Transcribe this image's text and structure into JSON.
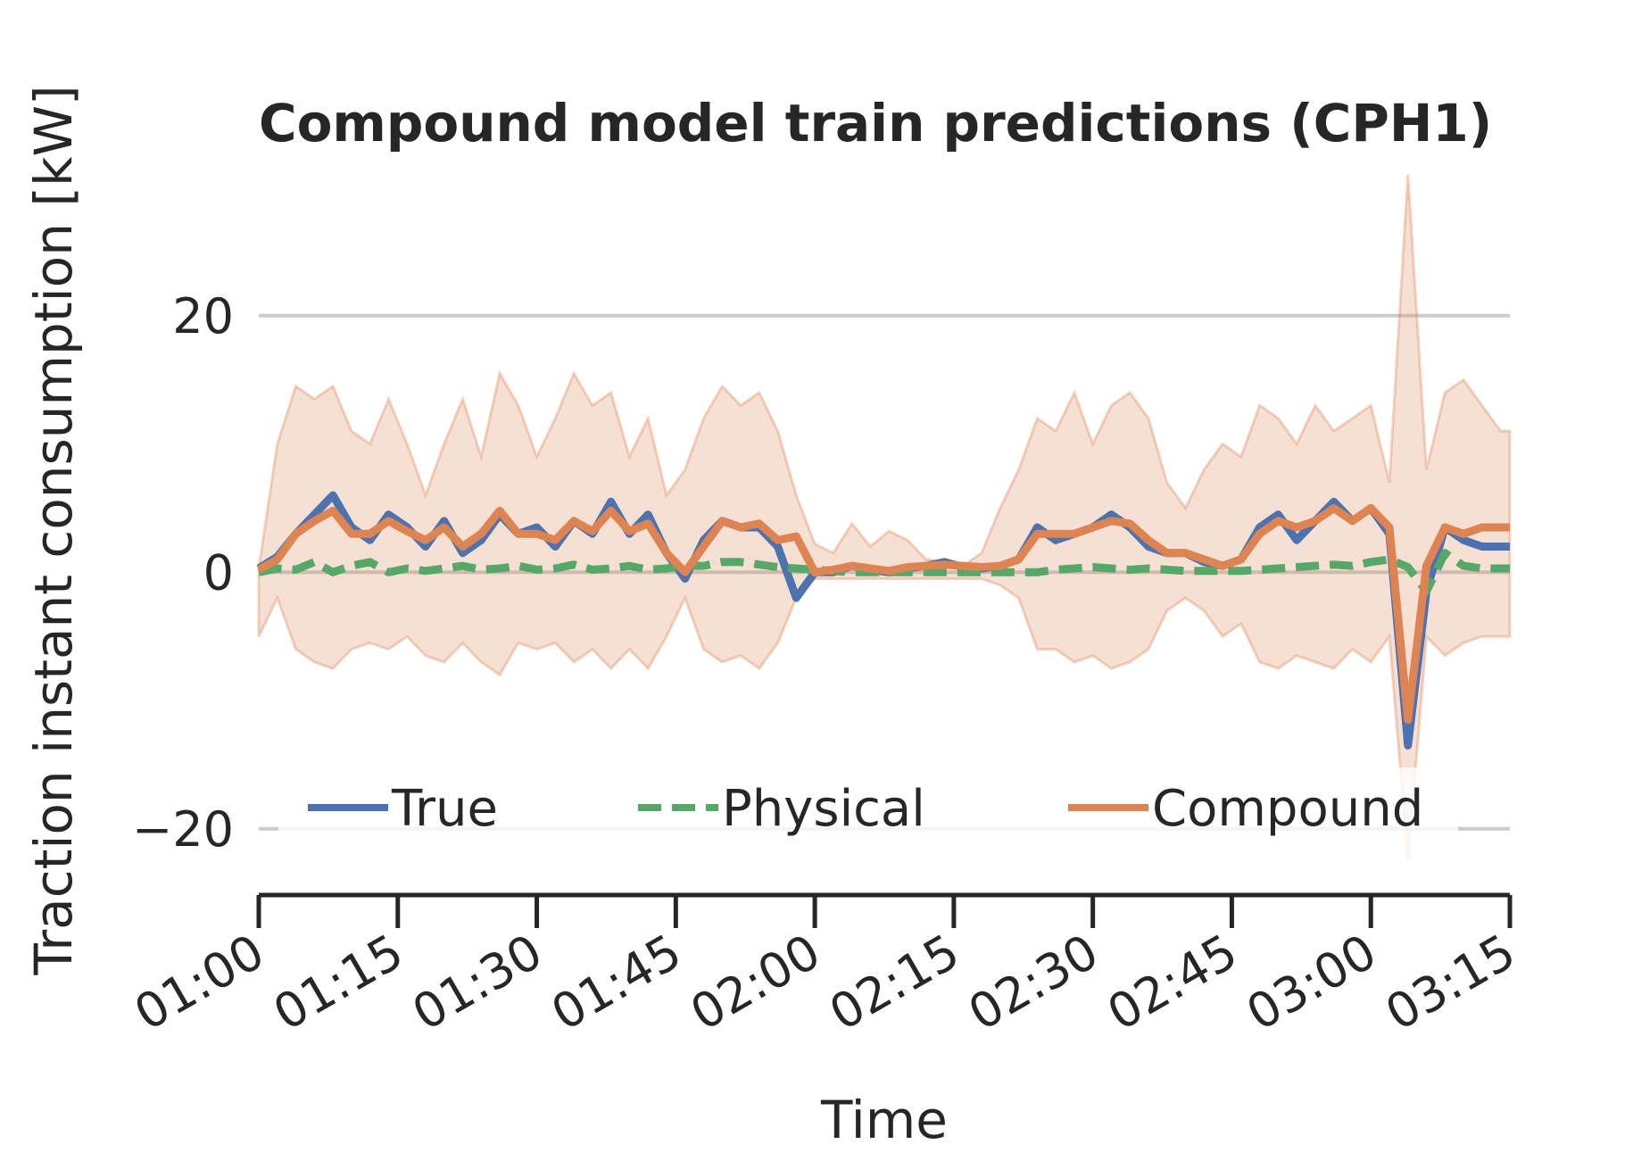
{
  "chart_data": {
    "type": "line",
    "title": "Compound model train predictions (CPH1)",
    "xlabel": "Time",
    "ylabel": "Traction instant consumption [kW]",
    "x_tick_labels": [
      "01:00",
      "01:15",
      "01:30",
      "01:45",
      "02:00",
      "02:15",
      "02:30",
      "02:45",
      "03:00",
      "03:15"
    ],
    "x_range_minutes": [
      0,
      135
    ],
    "y_ticks": [
      -20,
      0,
      20
    ],
    "y_tick_labels": [
      "−20",
      "0",
      "20"
    ],
    "ylim": [
      -25.3,
      30
    ],
    "grid": "horizontal",
    "legend_position": "lower center",
    "x_minutes": [
      0,
      2,
      4,
      6,
      8,
      10,
      12,
      14,
      16,
      18,
      20,
      22,
      24,
      26,
      28,
      30,
      32,
      34,
      36,
      38,
      40,
      42,
      44,
      46,
      48,
      50,
      52,
      54,
      56,
      58,
      60,
      62,
      64,
      66,
      68,
      70,
      72,
      74,
      76,
      78,
      80,
      82,
      84,
      86,
      88,
      90,
      92,
      94,
      96,
      98,
      100,
      102,
      104,
      106,
      108,
      110,
      112,
      114,
      116,
      118,
      120,
      122,
      124,
      126,
      128,
      130,
      132,
      134,
      135
    ],
    "series": [
      {
        "name": "True",
        "color": "#4c72b0",
        "style": "solid",
        "values": [
          0.3,
          1.2,
          3.0,
          4.5,
          6.0,
          3.5,
          2.5,
          4.5,
          3.5,
          2.0,
          4.0,
          1.5,
          2.5,
          4.5,
          3.0,
          3.5,
          2.0,
          4.0,
          3.0,
          5.5,
          3.0,
          4.5,
          1.5,
          -0.5,
          2.5,
          4.0,
          3.5,
          3.5,
          2.0,
          -2.0,
          0.0,
          0.0,
          0.5,
          0.2,
          0.0,
          0.3,
          0.5,
          0.8,
          0.4,
          0.3,
          0.5,
          1.0,
          3.5,
          2.5,
          3.0,
          3.5,
          4.5,
          3.5,
          2.0,
          1.5,
          1.5,
          0.8,
          0.5,
          1.0,
          3.5,
          4.5,
          2.5,
          4.0,
          5.5,
          4.0,
          5.0,
          3.0,
          -13.5,
          -1.5,
          3.5,
          2.5,
          2.0,
          2.0,
          2.0
        ]
      },
      {
        "name": "Physical",
        "color": "#55a868",
        "style": "dashed",
        "values": [
          0,
          0.3,
          0.2,
          0.8,
          0,
          0.5,
          0.8,
          0,
          0.3,
          0.1,
          0.3,
          0.5,
          0.2,
          0.3,
          0.5,
          0.2,
          0.3,
          0.6,
          0.2,
          0.3,
          0.5,
          0.2,
          0.3,
          0.5,
          0.5,
          0.8,
          0.8,
          0.6,
          0.4,
          0.3,
          0.2,
          0.1,
          0,
          0,
          0,
          0,
          0,
          0,
          0,
          0,
          0,
          0,
          0,
          0.2,
          0.3,
          0.4,
          0.3,
          0.2,
          0.3,
          0.2,
          0.1,
          0.1,
          0.1,
          0.1,
          0.2,
          0.3,
          0.4,
          0.5,
          0.6,
          0.5,
          0.8,
          1.0,
          0.4,
          -1.5,
          1.5,
          0.5,
          0.3,
          0.3,
          0.3
        ]
      },
      {
        "name": "Compound",
        "color": "#dd8452",
        "style": "solid",
        "values": [
          0.2,
          1.0,
          3.0,
          4.0,
          4.8,
          3.0,
          3.0,
          4.0,
          3.2,
          2.5,
          3.5,
          2.0,
          3.0,
          4.8,
          3.0,
          3.0,
          2.5,
          4.0,
          3.2,
          4.8,
          3.2,
          3.8,
          1.5,
          0.0,
          2.0,
          4.0,
          3.5,
          3.8,
          2.5,
          2.8,
          0.0,
          0.2,
          0.5,
          0.3,
          0.1,
          0.4,
          0.5,
          0.6,
          0.5,
          0.4,
          0.5,
          1.0,
          3.0,
          3.0,
          3.0,
          3.5,
          4.0,
          3.8,
          2.5,
          1.5,
          1.5,
          1.0,
          0.5,
          1.0,
          3.0,
          4.0,
          3.5,
          4.0,
          5.0,
          4.0,
          5.0,
          3.5,
          -11.5,
          0.5,
          3.5,
          3.0,
          3.5,
          3.5,
          3.5
        ]
      }
    ],
    "confidence_band": {
      "series": "Compound",
      "color": "#dd8452",
      "upper": [
        0.3,
        10,
        14.5,
        13.5,
        14.5,
        11,
        10,
        13.5,
        10,
        6,
        10,
        13.5,
        9,
        15.5,
        13,
        9,
        12,
        15.5,
        13,
        14,
        9,
        12,
        6,
        8,
        12,
        14.5,
        13,
        14,
        11,
        6,
        2.2,
        1.5,
        3.8,
        2,
        3.2,
        2.5,
        1,
        0.8,
        0.5,
        1.5,
        5,
        8,
        12,
        11,
        14,
        10,
        13,
        14,
        12,
        7,
        5,
        8,
        10,
        9,
        13,
        12,
        10,
        13,
        11,
        12,
        13,
        7,
        31,
        8,
        14,
        15,
        13,
        11,
        11
      ],
      "lower": [
        -5,
        -2,
        -6,
        -7,
        -7.5,
        -6,
        -5.5,
        -6,
        -5,
        -6.5,
        -7,
        -5.5,
        -7,
        -8,
        -5.5,
        -6,
        -5.5,
        -7,
        -6,
        -7.5,
        -6,
        -7.5,
        -5,
        -2,
        -6,
        -7,
        -6.5,
        -7.5,
        -5.5,
        -2,
        -0.5,
        -0.5,
        -0.5,
        -0.5,
        -0.5,
        -0.5,
        -0.5,
        -0.5,
        -0.5,
        -0.5,
        -1,
        -2,
        -6,
        -6,
        -7,
        -6.5,
        -7.5,
        -7,
        -6,
        -3,
        -2,
        -3,
        -5,
        -4,
        -7,
        -7.5,
        -6.5,
        -7,
        -7.5,
        -6,
        -7,
        -5,
        -22.5,
        -5,
        -6.5,
        -5.5,
        -5,
        -5,
        -5
      ]
    }
  }
}
